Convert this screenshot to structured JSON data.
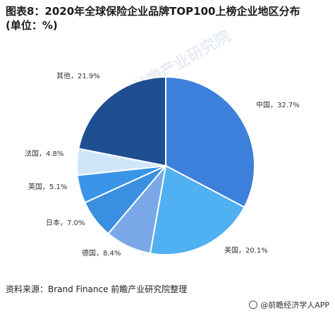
{
  "header": {
    "title_line1": "图表8：2020年全球保险企业品牌TOP100上榜企业地区分布",
    "title_line2": "(单位：%)"
  },
  "chart_data": {
    "type": "pie",
    "title": "图表8：2020年全球保险企业品牌TOP100上榜企业地区分布(单位：%)",
    "unit": "%",
    "slices": [
      {
        "label": "中国",
        "value": 32.7,
        "text": "中国，32.7%",
        "color": "#3c80db"
      },
      {
        "label": "美国",
        "value": 20.1,
        "text": "美国，20.1%",
        "color": "#4fb0f2"
      },
      {
        "label": "德国",
        "value": 8.4,
        "text": "德国，8.4%",
        "color": "#7aa8e8"
      },
      {
        "label": "日本",
        "value": 7.0,
        "text": "日本，7.0%",
        "color": "#3a8fe0"
      },
      {
        "label": "英国",
        "value": 5.1,
        "text": "英国，5.1%",
        "color": "#3a95e8"
      },
      {
        "label": "法国",
        "value": 4.8,
        "text": "法国，4.8%",
        "color": "#cfe6fa"
      },
      {
        "label": "其他",
        "value": 21.9,
        "text": "其他，21.9%",
        "color": "#1e4f91"
      }
    ]
  },
  "footer": {
    "source": "资料来源：Brand Finance 前瞻产业研究院整理",
    "brand": "@前瞻经济学人APP"
  }
}
